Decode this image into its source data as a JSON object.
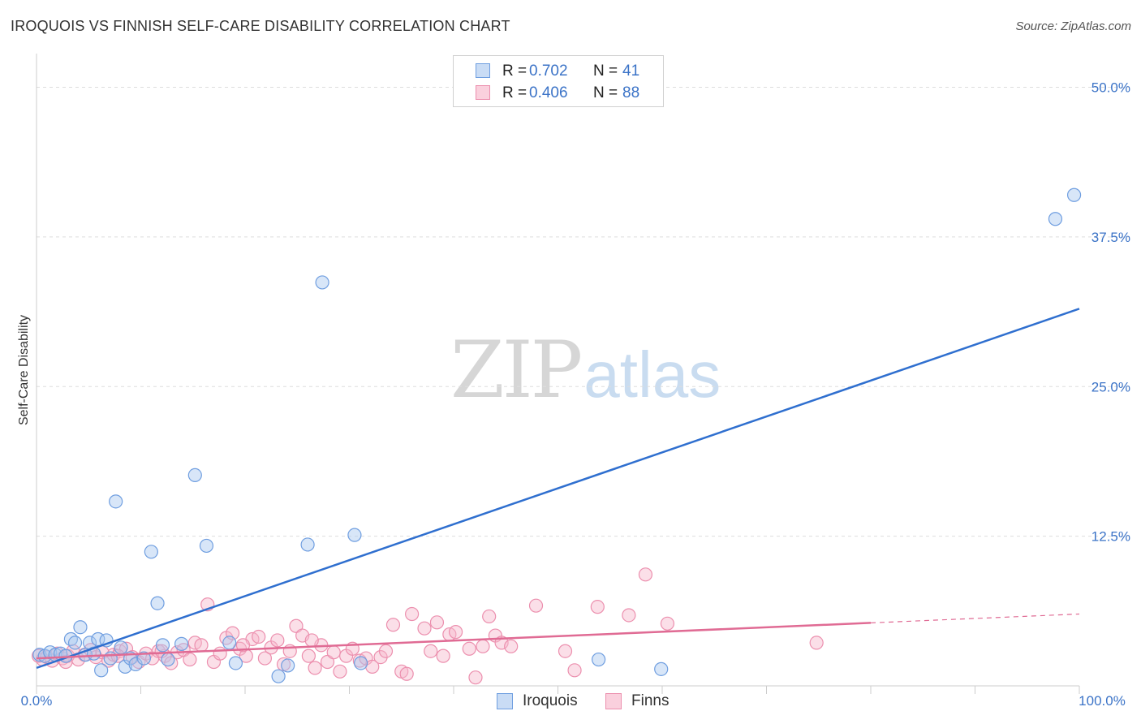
{
  "header": {
    "title": "IROQUOIS VS FINNISH SELF-CARE DISABILITY CORRELATION CHART",
    "source": "Source: ZipAtlas.com"
  },
  "watermark": {
    "zip": "ZIP",
    "atlas": "atlas"
  },
  "colors": {
    "iroquois_fill": "#a9c8f0",
    "iroquois_stroke": "#6f9ee0",
    "iroquois_line": "#2f6fcf",
    "finns_fill": "#f7b9cb",
    "finns_stroke": "#ec8fae",
    "finns_line": "#e06b94",
    "grid": "#dddddd",
    "tick_label": "#3b73c7"
  },
  "legend_top": {
    "rows": [
      {
        "r_label": "R =",
        "r_value": "0.702",
        "n_label": "N =",
        "n_value": "41"
      },
      {
        "r_label": "R =",
        "r_value": "0.406",
        "n_label": "N =",
        "n_value": "88"
      }
    ]
  },
  "legend_bottom": {
    "items": [
      {
        "label": "Iroquois"
      },
      {
        "label": "Finns"
      }
    ]
  },
  "chart_data": {
    "type": "scatter",
    "title": "IROQUOIS VS FINNISH SELF-CARE DISABILITY CORRELATION CHART",
    "xlabel": "",
    "ylabel": "Self-Care Disability",
    "xlim": [
      0,
      100
    ],
    "ylim": [
      0,
      52
    ],
    "x_tick_labels": [
      "0.0%",
      "100.0%"
    ],
    "y_ticks": [
      12.5,
      25.0,
      37.5,
      50.0
    ],
    "y_tick_labels": [
      "12.5%",
      "25.0%",
      "37.5%",
      "50.0%"
    ],
    "grid": true,
    "legend_placement": "top-center",
    "series": [
      {
        "name": "Iroquois",
        "r": 0.702,
        "n": 41,
        "trend": {
          "x": [
            0,
            100
          ],
          "y": [
            1.5,
            31.5
          ],
          "dashed_from": null
        },
        "points": [
          [
            0.3,
            2.6
          ],
          [
            0.8,
            2.5
          ],
          [
            1.3,
            2.8
          ],
          [
            1.8,
            2.6
          ],
          [
            2.3,
            2.7
          ],
          [
            2.8,
            2.5
          ],
          [
            3.3,
            3.9
          ],
          [
            3.7,
            3.6
          ],
          [
            4.2,
            4.9
          ],
          [
            4.7,
            2.6
          ],
          [
            5.1,
            3.6
          ],
          [
            5.5,
            2.7
          ],
          [
            5.9,
            3.9
          ],
          [
            6.2,
            1.3
          ],
          [
            6.7,
            3.8
          ],
          [
            7.1,
            2.3
          ],
          [
            7.6,
            15.4
          ],
          [
            8.1,
            3.2
          ],
          [
            8.5,
            1.6
          ],
          [
            9.0,
            2.3
          ],
          [
            9.5,
            1.8
          ],
          [
            10.3,
            2.3
          ],
          [
            11.0,
            11.2
          ],
          [
            11.6,
            6.9
          ],
          [
            12.1,
            3.4
          ],
          [
            12.6,
            2.2
          ],
          [
            13.9,
            3.5
          ],
          [
            15.2,
            17.6
          ],
          [
            16.3,
            11.7
          ],
          [
            18.5,
            3.6
          ],
          [
            19.1,
            1.9
          ],
          [
            23.2,
            0.8
          ],
          [
            24.1,
            1.7
          ],
          [
            26.0,
            11.8
          ],
          [
            27.4,
            33.7
          ],
          [
            31.1,
            1.9
          ],
          [
            30.5,
            12.6
          ],
          [
            53.9,
            2.2
          ],
          [
            59.9,
            1.4
          ],
          [
            97.7,
            39.0
          ],
          [
            99.5,
            41.0
          ]
        ]
      },
      {
        "name": "Finns",
        "r": 0.406,
        "n": 88,
        "trend": {
          "x": [
            0,
            100
          ],
          "y": [
            2.3,
            6.0
          ],
          "dashed_from": 80
        },
        "points": [
          [
            0.2,
            2.5
          ],
          [
            0.6,
            2.2
          ],
          [
            1.0,
            2.4
          ],
          [
            1.5,
            2.1
          ],
          [
            2.0,
            2.7
          ],
          [
            2.5,
            2.3
          ],
          [
            3.0,
            2.5
          ],
          [
            3.5,
            2.9
          ],
          [
            4.0,
            2.2
          ],
          [
            4.6,
            2.6
          ],
          [
            5.2,
            3.0
          ],
          [
            5.7,
            2.4
          ],
          [
            6.3,
            2.8
          ],
          [
            6.9,
            2.1
          ],
          [
            7.4,
            2.6
          ],
          [
            8.0,
            2.9
          ],
          [
            8.6,
            3.1
          ],
          [
            9.2,
            2.4
          ],
          [
            9.8,
            2.0
          ],
          [
            10.5,
            2.7
          ],
          [
            11.1,
            2.3
          ],
          [
            11.7,
            2.9
          ],
          [
            12.3,
            2.5
          ],
          [
            12.9,
            1.9
          ],
          [
            13.5,
            2.8
          ],
          [
            14.1,
            3.0
          ],
          [
            14.7,
            2.2
          ],
          [
            15.2,
            3.6
          ],
          [
            15.8,
            3.4
          ],
          [
            16.4,
            6.8
          ],
          [
            17.0,
            2.0
          ],
          [
            17.6,
            2.7
          ],
          [
            18.2,
            4.0
          ],
          [
            18.8,
            4.4
          ],
          [
            19.5,
            3.1
          ],
          [
            20.1,
            2.5
          ],
          [
            20.7,
            3.9
          ],
          [
            21.3,
            4.1
          ],
          [
            21.9,
            2.3
          ],
          [
            22.5,
            3.2
          ],
          [
            23.1,
            3.8
          ],
          [
            23.7,
            1.8
          ],
          [
            24.3,
            2.9
          ],
          [
            24.9,
            5.0
          ],
          [
            25.5,
            4.2
          ],
          [
            26.1,
            2.5
          ],
          [
            26.7,
            1.5
          ],
          [
            27.3,
            3.4
          ],
          [
            27.9,
            2.0
          ],
          [
            28.5,
            2.8
          ],
          [
            29.1,
            1.2
          ],
          [
            29.7,
            2.5
          ],
          [
            30.3,
            3.1
          ],
          [
            31.0,
            2.1
          ],
          [
            31.6,
            2.3
          ],
          [
            32.2,
            1.6
          ],
          [
            33.0,
            2.4
          ],
          [
            34.2,
            5.1
          ],
          [
            35.0,
            1.2
          ],
          [
            35.5,
            1.0
          ],
          [
            36.0,
            6.0
          ],
          [
            37.2,
            4.8
          ],
          [
            37.8,
            2.9
          ],
          [
            38.4,
            5.3
          ],
          [
            39.0,
            2.5
          ],
          [
            39.6,
            4.3
          ],
          [
            40.2,
            4.5
          ],
          [
            41.5,
            3.1
          ],
          [
            42.1,
            0.7
          ],
          [
            42.8,
            3.3
          ],
          [
            43.4,
            5.8
          ],
          [
            44.0,
            4.2
          ],
          [
            44.6,
            3.6
          ],
          [
            47.9,
            6.7
          ],
          [
            50.7,
            2.9
          ],
          [
            51.6,
            1.3
          ],
          [
            53.8,
            6.6
          ],
          [
            56.8,
            5.9
          ],
          [
            58.4,
            9.3
          ],
          [
            60.5,
            5.2
          ],
          [
            74.8,
            3.6
          ],
          [
            2.8,
            2.0
          ],
          [
            7.8,
            2.5
          ],
          [
            12.0,
            2.9
          ],
          [
            19.8,
            3.4
          ],
          [
            26.4,
            3.8
          ],
          [
            33.5,
            2.9
          ],
          [
            45.5,
            3.3
          ]
        ]
      }
    ]
  }
}
